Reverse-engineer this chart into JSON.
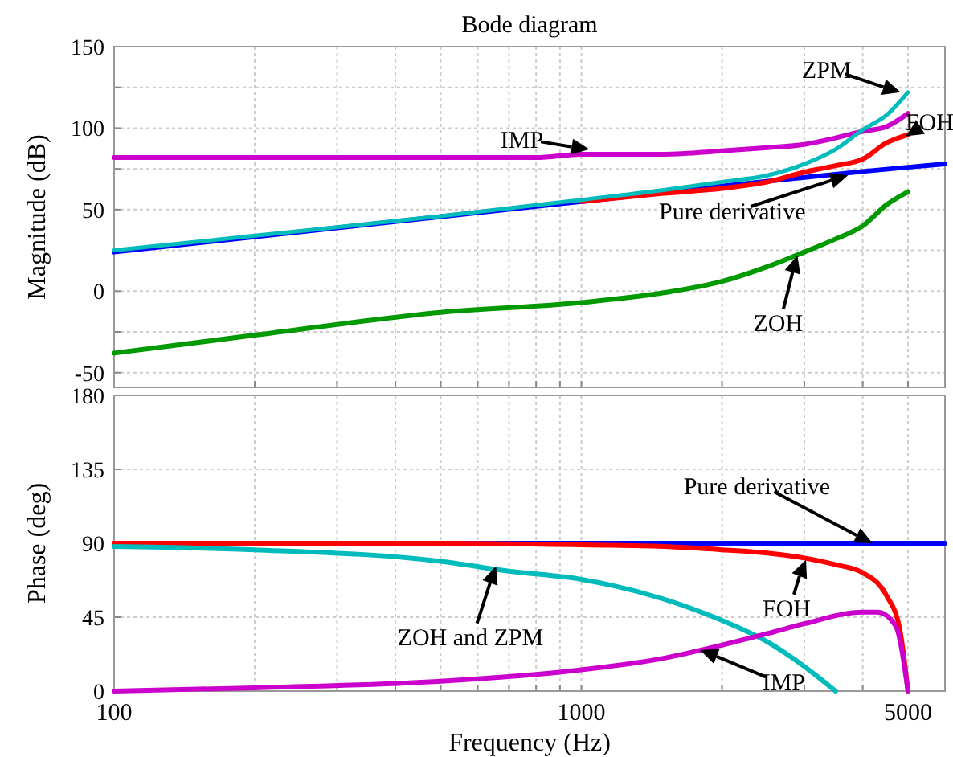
{
  "chart_data": [
    {
      "type": "line",
      "title": "Bode diagram",
      "ylabel": "Magnitude (dB)",
      "log": "x",
      "grid": true,
      "tick_labels": "y",
      "xlim": [
        100,
        6000
      ],
      "xticks": [
        {
          "value": 100,
          "label": null
        },
        {
          "value": 200,
          "label": null
        },
        {
          "value": 300,
          "label": null
        },
        {
          "value": 400,
          "label": null
        },
        {
          "value": 500,
          "label": null
        },
        {
          "value": 600,
          "label": null
        },
        {
          "value": 700,
          "label": null
        },
        {
          "value": 800,
          "label": null
        },
        {
          "value": 900,
          "label": null
        },
        {
          "value": 1000,
          "label": null
        },
        {
          "value": 2000,
          "label": null
        },
        {
          "value": 3000,
          "label": null
        },
        {
          "value": 4000,
          "label": null
        },
        {
          "value": 5000,
          "label": null
        }
      ],
      "ylim": [
        -59,
        150
      ],
      "yticks": [
        -50,
        {
          "value": -25,
          "label": null
        },
        0,
        {
          "value": 25,
          "label": null
        },
        50,
        {
          "value": 75,
          "label": null
        },
        100,
        {
          "value": 125,
          "label": null
        },
        150
      ],
      "series": [
        {
          "color": "#cc00cc",
          "x": [
            100,
            200,
            500,
            800,
            1000,
            1500,
            2000,
            2500,
            3000,
            3500,
            4000,
            4500,
            5000
          ],
          "values": [
            82,
            82,
            82,
            82,
            84,
            84,
            86,
            88,
            90,
            94,
            98,
            101,
            109
          ]
        },
        {
          "color": "#0000ff",
          "x": [
            100,
            1000,
            5000,
            6000
          ],
          "values": [
            24,
            55,
            76,
            78
          ]
        },
        {
          "color": "#ff0000",
          "x": [
            1000,
            1500,
            2000,
            2500,
            3000,
            3500,
            4000,
            4500,
            5000
          ],
          "values": [
            55,
            60,
            63,
            67,
            73,
            77,
            81,
            91,
            96
          ]
        },
        {
          "color": "#00bbbb",
          "x": [
            100,
            200,
            500,
            1000,
            1500,
            2000,
            2500,
            3000,
            3500,
            4000,
            4500,
            5000
          ],
          "values": [
            25,
            34,
            46,
            56,
            62,
            67,
            71,
            78,
            87,
            99,
            108,
            122
          ]
        },
        {
          "color": "#009900",
          "x": [
            100,
            200,
            500,
            1000,
            1500,
            2000,
            2500,
            3000,
            3500,
            4000,
            4500,
            5000
          ],
          "values": [
            -38,
            -27,
            -13,
            -7,
            -1,
            6,
            15,
            24,
            32,
            40,
            53,
            61
          ]
        }
      ],
      "annotations": [
        {
          "text": "IMP",
          "x": 1040,
          "y": 87
        },
        {
          "text": "ZPM",
          "x": 4820,
          "y": 122
        },
        {
          "text": "FOH",
          "x": 4940,
          "y": 95
        },
        {
          "text": "Pure derivative",
          "x": 3720,
          "y": 71
        },
        {
          "text": "ZOH",
          "x": 2900,
          "y": 22
        }
      ]
    },
    {
      "type": "line",
      "xlabel": "Frequency (Hz)",
      "ylabel": "Phase (deg)",
      "log": "x",
      "grid": true,
      "xlim": [
        100,
        6000
      ],
      "xticks": [
        100,
        {
          "value": 200,
          "label": null
        },
        {
          "value": 300,
          "label": null
        },
        {
          "value": 400,
          "label": null
        },
        {
          "value": 500,
          "label": null
        },
        {
          "value": 600,
          "label": null
        },
        {
          "value": 700,
          "label": null
        },
        {
          "value": 800,
          "label": null
        },
        {
          "value": 900,
          "label": null
        },
        1000,
        {
          "value": 2000,
          "label": null
        },
        {
          "value": 3000,
          "label": null
        },
        {
          "value": 4000,
          "label": null
        },
        5000
      ],
      "ylim": [
        0,
        180
      ],
      "yticks": [
        0,
        45,
        90,
        135,
        180
      ],
      "series": [
        {
          "color": "#0000ff",
          "x": [
            100,
            1000,
            6000
          ],
          "values": [
            90,
            90,
            90
          ]
        },
        {
          "color": "#ff0000",
          "x": [
            100,
            500,
            1000,
            1500,
            2000,
            2500,
            3000,
            3500,
            4000,
            4500,
            4800,
            5000
          ],
          "values": [
            90,
            90,
            89,
            88,
            86,
            84,
            81,
            77,
            72,
            58,
            38,
            0
          ]
        },
        {
          "color": "#00bbbb",
          "x": [
            100,
            200,
            500,
            700,
            1000,
            1500,
            2000,
            2500,
            3000,
            3500
          ],
          "values": [
            88,
            86,
            79,
            73,
            68,
            56,
            43,
            30,
            15,
            0
          ]
        },
        {
          "color": "#cc00cc",
          "x": [
            100,
            200,
            500,
            1000,
            1500,
            2000,
            2500,
            3000,
            4000,
            4300,
            4700,
            5000
          ],
          "values": [
            0,
            2,
            6,
            13,
            20,
            28,
            35,
            41,
            48,
            48,
            40,
            0
          ]
        }
      ],
      "annotations": [
        {
          "text": "Pure derivative",
          "x": 4200,
          "y": 90
        },
        {
          "text": "ZOH and ZPM",
          "x": 657,
          "y": 76
        },
        {
          "text": "FOH",
          "x": 3025,
          "y": 80
        },
        {
          "text": "IMP",
          "x": 1796,
          "y": 25
        }
      ]
    }
  ]
}
